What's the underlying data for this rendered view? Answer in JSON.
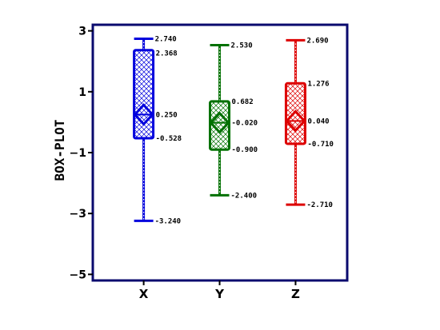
{
  "chart_data": {
    "type": "box",
    "ylabel": "BOX-PLOT",
    "xlabel": "",
    "ylim": [
      -5.2,
      3.2
    ],
    "yticks": [
      3,
      1,
      -1,
      -3,
      -5
    ],
    "ytick_labels": [
      "3",
      "1",
      "−1",
      "−3",
      "−5"
    ],
    "grid": false,
    "frame_color": "#0a0a6e",
    "hatch": "crosshatch",
    "series": [
      {
        "category": "X",
        "color": "#0000dd",
        "max": 2.74,
        "q3": 2.368,
        "mean": 0.25,
        "q1": -0.528,
        "min": -3.24,
        "labels": {
          "max": "2.740",
          "q3": "2.368",
          "mean": "0.250",
          "q1": "-0.528",
          "min": "-3.240"
        }
      },
      {
        "category": "Y",
        "color": "#007000",
        "max": 2.53,
        "q3": 0.682,
        "mean": -0.02,
        "q1": -0.9,
        "min": -2.4,
        "labels": {
          "max": "2.530",
          "q3": "0.682",
          "mean": "-0.020",
          "q1": "-0.900",
          "min": "-2.400"
        }
      },
      {
        "category": "Z",
        "color": "#dd0000",
        "max": 2.69,
        "q3": 1.276,
        "mean": 0.04,
        "q1": -0.71,
        "min": -2.71,
        "labels": {
          "max": "2.690",
          "q3": "1.276",
          "mean": "0.040",
          "q1": "-0.710",
          "min": "-2.710"
        }
      }
    ]
  }
}
